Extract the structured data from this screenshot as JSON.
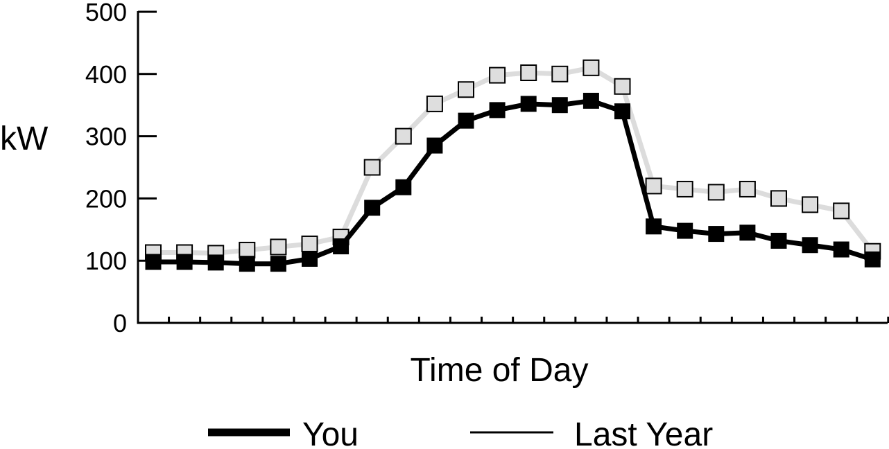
{
  "chart_data": {
    "type": "line",
    "title": "",
    "xlabel": "Time of Day",
    "ylabel": "kW",
    "ylim": [
      0,
      500
    ],
    "y_ticks": [
      "0",
      "100",
      "200",
      "300",
      "400",
      "500"
    ],
    "x_tick_count": 24,
    "x": [
      1,
      2,
      3,
      4,
      5,
      6,
      7,
      8,
      9,
      10,
      11,
      12,
      13,
      14,
      15,
      16,
      17,
      18,
      19,
      20,
      21,
      22,
      23,
      24
    ],
    "series": [
      {
        "name": "Last Year",
        "color": "#dcdcdc",
        "marker_fill": "#dedede",
        "values": [
          113,
          113,
          112,
          117,
          122,
          127,
          138,
          250,
          300,
          352,
          375,
          398,
          402,
          400,
          410,
          380,
          220,
          215,
          210,
          215,
          200,
          190,
          180,
          115
        ]
      },
      {
        "name": "You",
        "color": "#000000",
        "marker_fill": "#000000",
        "values": [
          98,
          98,
          97,
          95,
          95,
          103,
          123,
          185,
          218,
          285,
          325,
          342,
          352,
          350,
          357,
          340,
          155,
          148,
          143,
          145,
          132,
          125,
          118,
          102
        ]
      }
    ],
    "legend": {
      "position": "bottom",
      "items": [
        {
          "label": "You",
          "line_color": "#000000"
        },
        {
          "label": "Last Year",
          "line_color": "#000000"
        }
      ]
    },
    "grid": false
  }
}
